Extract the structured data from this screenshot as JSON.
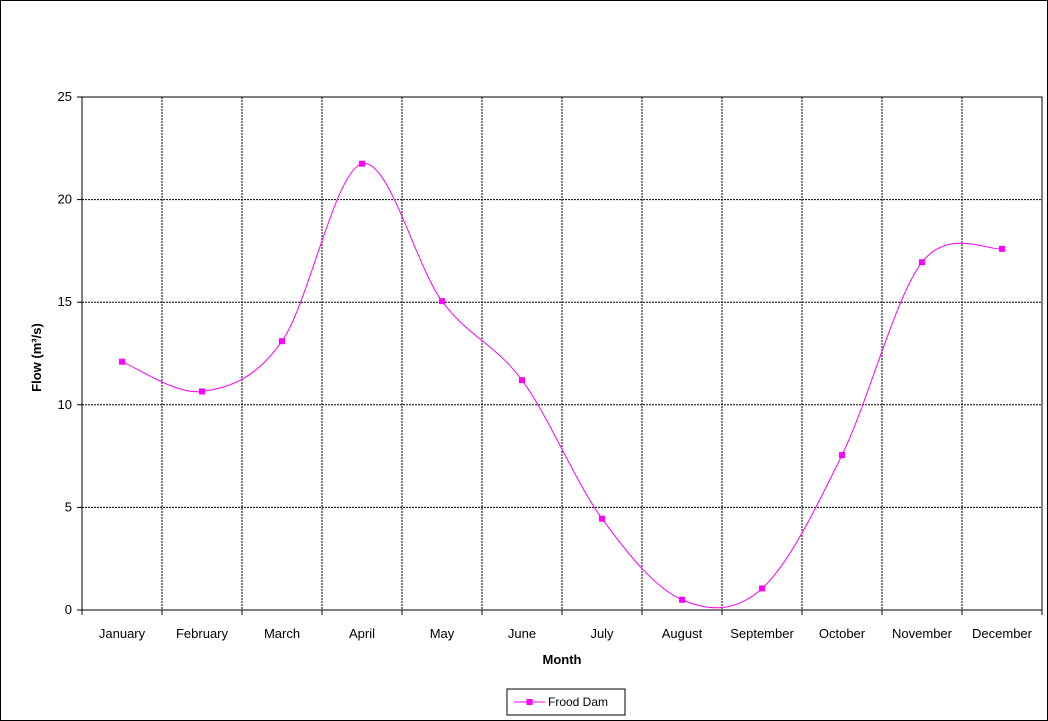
{
  "chart_data": {
    "type": "line",
    "title": "",
    "xlabel": "Month",
    "ylabel": "Flow (m³/s)",
    "categories": [
      "January",
      "February",
      "March",
      "April",
      "May",
      "June",
      "July",
      "August",
      "September",
      "October",
      "November",
      "December"
    ],
    "ylim": [
      0,
      25
    ],
    "yticks": [
      "0",
      "5",
      "10",
      "15",
      "20",
      "25"
    ],
    "grid": true,
    "smooth": true,
    "legend_position": "bottom",
    "series": [
      {
        "name": "Frood Dam",
        "color": "#ff00ff",
        "marker": "square",
        "values": [
          12.1,
          10.65,
          13.1,
          21.75,
          15.05,
          11.2,
          4.45,
          0.5,
          1.05,
          7.55,
          16.95,
          17.6
        ]
      }
    ]
  }
}
